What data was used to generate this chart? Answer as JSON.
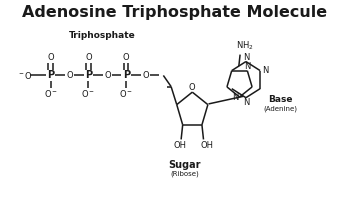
{
  "title": "Adenosine Triphosphate Molecule",
  "title_fontsize": 11.5,
  "title_fontweight": "bold",
  "bg_color": "#ffffff",
  "line_color": "#1a1a1a",
  "text_color": "#1a1a1a",
  "label_triphosphate": "Triphosphate",
  "label_base": "Base",
  "label_base_sub": "(Adenine)",
  "label_sugar": "Sugar",
  "label_sugar_sub": "(Ribose)",
  "figsize": [
    3.5,
    2.1
  ],
  "dpi": 100
}
